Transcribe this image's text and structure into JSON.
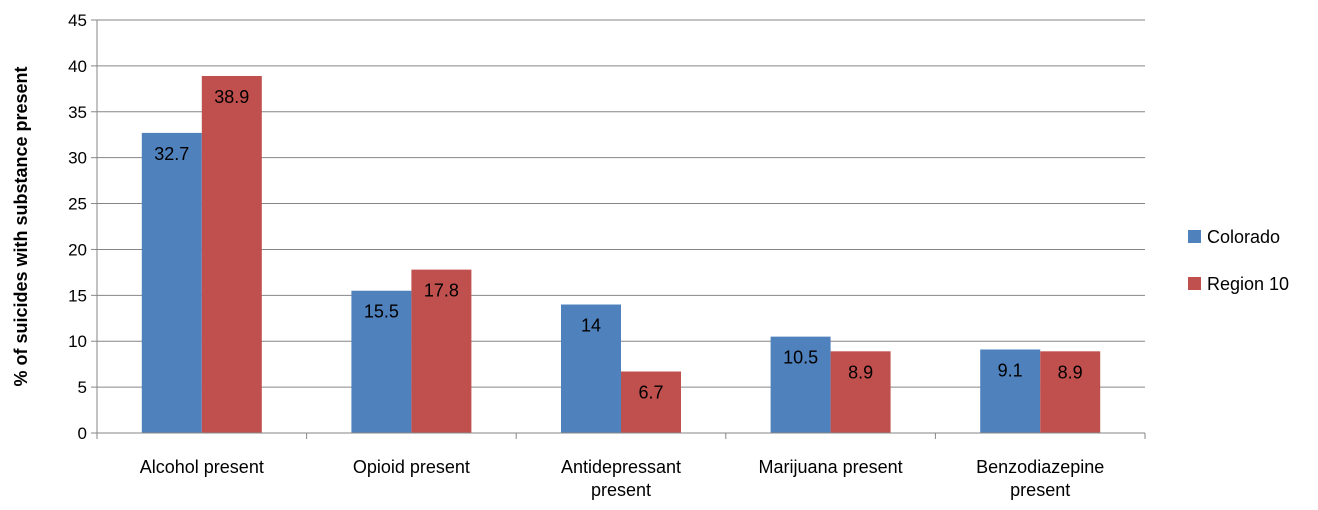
{
  "chart_data": {
    "type": "bar",
    "title": "",
    "xlabel": "",
    "ylabel": "% of suicides with substance present",
    "ylim": [
      0,
      45
    ],
    "yticks": [
      0,
      5,
      10,
      15,
      20,
      25,
      30,
      35,
      40,
      45
    ],
    "grid": true,
    "legend_position": "right",
    "categories": [
      [
        "Alcohol present"
      ],
      [
        "Opioid present"
      ],
      [
        "Antidepressant",
        "present"
      ],
      [
        "Marijuana present"
      ],
      [
        "Benzodiazepine",
        "present"
      ]
    ],
    "series": [
      {
        "name": "Colorado",
        "color": "#4F81BD",
        "values": [
          32.7,
          15.5,
          14,
          10.5,
          9.1
        ]
      },
      {
        "name": "Region 10",
        "color": "#C0504D",
        "values": [
          38.9,
          17.8,
          6.7,
          8.9,
          8.9
        ]
      }
    ]
  }
}
